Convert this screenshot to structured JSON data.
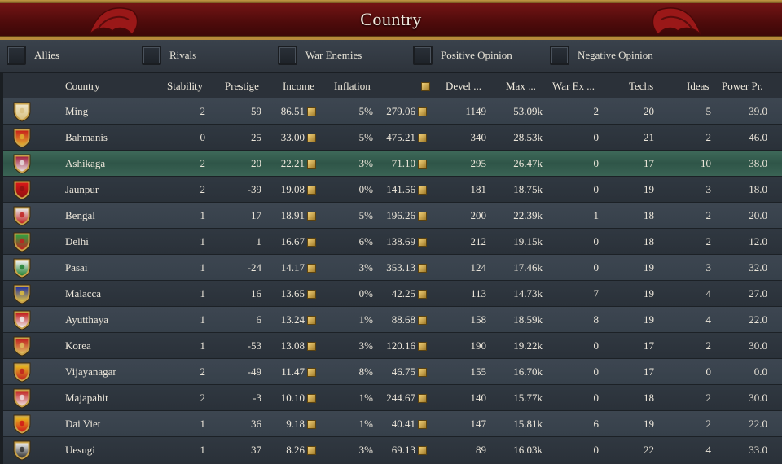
{
  "window": {
    "title": "Country"
  },
  "filters": [
    {
      "label": "Allies"
    },
    {
      "label": "Rivals"
    },
    {
      "label": "War Enemies"
    },
    {
      "label": "Positive Opinion"
    },
    {
      "label": "Negative Opinion"
    }
  ],
  "columns": {
    "country": "Country",
    "stability": "Stability",
    "prestige": "Prestige",
    "income": "Income",
    "inflation": "Inflation",
    "treasury": "",
    "devel": "Devel ...",
    "max": "Max ...",
    "warex": "War Ex ...",
    "techs": "Techs",
    "ideas": "Ideas",
    "power": "Power Pr."
  },
  "rows": [
    {
      "name": "Ming",
      "stability": "2",
      "prestige": "59",
      "income": "86.51",
      "inflation": "5%",
      "treasury": "279.06",
      "devel": "1149",
      "max": "53.09k",
      "warex": "2",
      "techs": "20",
      "ideas": "5",
      "power": "39.0",
      "shield": [
        "#f0e6c8",
        "#d8c080"
      ]
    },
    {
      "name": "Bahmanis",
      "stability": "0",
      "prestige": "25",
      "income": "33.00",
      "inflation": "5%",
      "treasury": "475.21",
      "devel": "340",
      "max": "28.53k",
      "warex": "0",
      "techs": "21",
      "ideas": "2",
      "power": "46.0",
      "shield": [
        "#c8201a",
        "#e0b030"
      ]
    },
    {
      "name": "Ashikaga",
      "stability": "2",
      "prestige": "20",
      "income": "22.21",
      "inflation": "3%",
      "treasury": "71.10",
      "devel": "295",
      "max": "26.47k",
      "warex": "0",
      "techs": "17",
      "ideas": "10",
      "power": "38.0",
      "shield": [
        "#a02040",
        "#e8e0e0"
      ]
    },
    {
      "name": "Jaunpur",
      "stability": "2",
      "prestige": "-39",
      "income": "19.08",
      "inflation": "0%",
      "treasury": "141.56",
      "devel": "181",
      "max": "18.75k",
      "warex": "0",
      "techs": "19",
      "ideas": "3",
      "power": "18.0",
      "shield": [
        "#d81818",
        "#901010"
      ]
    },
    {
      "name": "Bengal",
      "stability": "1",
      "prestige": "17",
      "income": "18.91",
      "inflation": "5%",
      "treasury": "196.26",
      "devel": "200",
      "max": "22.39k",
      "warex": "1",
      "techs": "18",
      "ideas": "2",
      "power": "20.0",
      "shield": [
        "#e8e8e8",
        "#c02020"
      ]
    },
    {
      "name": "Delhi",
      "stability": "1",
      "prestige": "1",
      "income": "16.67",
      "inflation": "6%",
      "treasury": "138.69",
      "devel": "212",
      "max": "19.15k",
      "warex": "0",
      "techs": "18",
      "ideas": "2",
      "power": "12.0",
      "shield": [
        "#30a040",
        "#c02020"
      ]
    },
    {
      "name": "Pasai",
      "stability": "1",
      "prestige": "-24",
      "income": "14.17",
      "inflation": "3%",
      "treasury": "353.13",
      "devel": "124",
      "max": "17.46k",
      "warex": "0",
      "techs": "19",
      "ideas": "3",
      "power": "32.0",
      "shield": [
        "#f0f0f0",
        "#208030"
      ]
    },
    {
      "name": "Malacca",
      "stability": "1",
      "prestige": "16",
      "income": "13.65",
      "inflation": "0%",
      "treasury": "42.25",
      "devel": "113",
      "max": "14.73k",
      "warex": "7",
      "techs": "19",
      "ideas": "4",
      "power": "27.0",
      "shield": [
        "#2030a0",
        "#e0c040"
      ]
    },
    {
      "name": "Ayutthaya",
      "stability": "1",
      "prestige": "6",
      "income": "13.24",
      "inflation": "1%",
      "treasury": "88.68",
      "devel": "158",
      "max": "18.59k",
      "warex": "8",
      "techs": "19",
      "ideas": "4",
      "power": "22.0",
      "shield": [
        "#c01818",
        "#f0f0f0"
      ]
    },
    {
      "name": "Korea",
      "stability": "1",
      "prestige": "-53",
      "income": "13.08",
      "inflation": "3%",
      "treasury": "120.16",
      "devel": "190",
      "max": "19.22k",
      "warex": "0",
      "techs": "17",
      "ideas": "2",
      "power": "30.0",
      "shield": [
        "#c02020",
        "#e0c060"
      ]
    },
    {
      "name": "Vijayanagar",
      "stability": "2",
      "prestige": "-49",
      "income": "11.47",
      "inflation": "8%",
      "treasury": "46.75",
      "devel": "155",
      "max": "16.70k",
      "warex": "0",
      "techs": "17",
      "ideas": "0",
      "power": "0.0",
      "shield": [
        "#e8c020",
        "#c02020"
      ]
    },
    {
      "name": "Majapahit",
      "stability": "2",
      "prestige": "-3",
      "income": "10.10",
      "inflation": "1%",
      "treasury": "244.67",
      "devel": "140",
      "max": "15.77k",
      "warex": "0",
      "techs": "18",
      "ideas": "2",
      "power": "30.0",
      "shield": [
        "#c02020",
        "#f0e0e0"
      ]
    },
    {
      "name": "Dai Viet",
      "stability": "1",
      "prestige": "36",
      "income": "9.18",
      "inflation": "1%",
      "treasury": "40.41",
      "devel": "147",
      "max": "15.81k",
      "warex": "6",
      "techs": "19",
      "ideas": "2",
      "power": "22.0",
      "shield": [
        "#e8c020",
        "#d01818"
      ]
    },
    {
      "name": "Uesugi",
      "stability": "1",
      "prestige": "37",
      "income": "8.26",
      "inflation": "3%",
      "treasury": "69.13",
      "devel": "89",
      "max": "16.03k",
      "warex": "0",
      "techs": "22",
      "ideas": "4",
      "power": "33.0",
      "shield": [
        "#f0f0f0",
        "#303030"
      ]
    }
  ],
  "highlighted_row": "Ashikaga",
  "icons": {
    "treasury": "gold-coins-icon",
    "filter": "checkbox-icon",
    "flag": "country-shield-icon"
  }
}
